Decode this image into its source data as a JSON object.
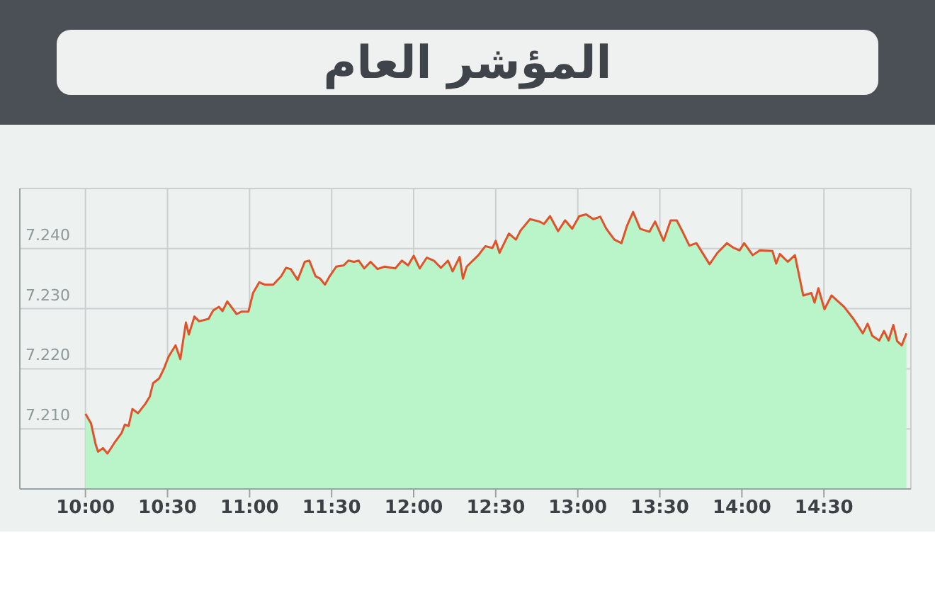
{
  "chart_data": {
    "type": "line",
    "title": "المؤشر العام",
    "x": [
      10.0,
      10.034,
      10.063,
      10.077,
      10.106,
      10.134,
      10.177,
      10.22,
      10.24,
      10.263,
      10.286,
      10.32,
      10.363,
      10.392,
      10.412,
      10.449,
      10.478,
      10.506,
      10.549,
      10.578,
      10.612,
      10.63,
      10.664,
      10.692,
      10.75,
      10.778,
      10.813,
      10.835,
      10.864,
      10.921,
      10.95,
      10.993,
      11.021,
      11.059,
      11.093,
      11.144,
      11.193,
      11.222,
      11.25,
      11.293,
      11.336,
      11.364,
      11.402,
      11.43,
      11.459,
      11.488,
      11.528,
      11.573,
      11.602,
      11.636,
      11.665,
      11.699,
      11.737,
      11.78,
      11.823,
      11.888,
      11.928,
      11.966,
      12.0,
      12.037,
      12.08,
      12.123,
      12.166,
      12.209,
      12.237,
      12.28,
      12.3,
      12.323,
      12.394,
      12.437,
      12.48,
      12.5,
      12.523,
      12.58,
      12.623,
      12.651,
      12.709,
      12.766,
      12.794,
      12.831,
      12.88,
      12.923,
      12.966,
      13.009,
      13.051,
      13.094,
      13.137,
      13.174,
      13.223,
      13.266,
      13.3,
      13.337,
      13.38,
      13.437,
      13.471,
      13.523,
      13.566,
      13.603,
      13.637,
      13.68,
      13.723,
      13.803,
      13.851,
      13.909,
      13.951,
      13.986,
      14.014,
      14.066,
      14.109,
      14.186,
      14.209,
      14.231,
      14.28,
      14.323,
      14.374,
      14.423,
      14.443,
      14.466,
      14.503,
      14.546,
      14.623,
      14.68,
      14.737,
      14.766,
      14.794,
      14.837,
      14.866,
      14.894,
      14.923,
      14.946,
      14.974,
      15.003
    ],
    "series": [
      {
        "type": "area",
        "color": "#b9f5c9",
        "values": [
          7.2125,
          7.2109,
          7.2073,
          7.2062,
          7.2068,
          7.2059,
          7.2077,
          7.2093,
          7.2107,
          7.2105,
          7.2133,
          7.2126,
          7.2141,
          7.2154,
          7.2176,
          7.2184,
          7.22,
          7.222,
          7.2239,
          7.2216,
          7.2277,
          7.2257,
          7.2287,
          7.2279,
          7.2283,
          7.2297,
          7.2303,
          7.2296,
          7.2312,
          7.2291,
          7.2295,
          7.2295,
          7.2326,
          7.2344,
          7.234,
          7.234,
          7.2354,
          7.2368,
          7.2366,
          7.2348,
          7.2378,
          7.238,
          7.2354,
          7.235,
          7.234,
          7.2354,
          7.237,
          7.2372,
          7.238,
          7.2378,
          7.238,
          7.2367,
          7.2378,
          7.2366,
          7.237,
          7.2367,
          7.238,
          7.2372,
          7.2388,
          7.2367,
          7.2385,
          7.238,
          7.2368,
          7.238,
          7.2362,
          7.2386,
          7.235,
          7.237,
          7.2389,
          7.2404,
          7.2401,
          7.2413,
          7.2393,
          7.2425,
          7.2415,
          7.243,
          7.2449,
          7.2445,
          7.2441,
          7.2454,
          7.2429,
          7.2447,
          7.2433,
          7.2454,
          7.2457,
          7.2449,
          7.2453,
          7.2433,
          7.2415,
          7.2409,
          7.2438,
          7.2461,
          7.2433,
          7.2428,
          7.2445,
          7.2413,
          7.2447,
          7.2447,
          7.2429,
          7.2405,
          7.2409,
          7.2374,
          7.2393,
          7.2409,
          7.2401,
          7.2397,
          7.2409,
          7.2389,
          7.2397,
          7.2396,
          7.2375,
          7.2391,
          7.2378,
          7.2389,
          7.2322,
          7.2326,
          7.231,
          7.2334,
          7.2299,
          7.2322,
          7.2303,
          7.2283,
          7.2259,
          7.2275,
          7.2255,
          7.2247,
          7.2263,
          7.2247,
          7.2273,
          7.2246,
          7.2239,
          7.2259
        ]
      },
      {
        "color": "#e0522a",
        "values": [
          7.2125,
          7.2109,
          7.2073,
          7.2062,
          7.2068,
          7.2059,
          7.2077,
          7.2093,
          7.2107,
          7.2105,
          7.2133,
          7.2126,
          7.2141,
          7.2154,
          7.2176,
          7.2184,
          7.22,
          7.222,
          7.2239,
          7.2216,
          7.2277,
          7.2257,
          7.2287,
          7.2279,
          7.2283,
          7.2297,
          7.2303,
          7.2296,
          7.2312,
          7.2291,
          7.2295,
          7.2295,
          7.2326,
          7.2344,
          7.234,
          7.234,
          7.2354,
          7.2368,
          7.2366,
          7.2348,
          7.2378,
          7.238,
          7.2354,
          7.235,
          7.234,
          7.2354,
          7.237,
          7.2372,
          7.238,
          7.2378,
          7.238,
          7.2367,
          7.2378,
          7.2366,
          7.237,
          7.2367,
          7.238,
          7.2372,
          7.2388,
          7.2367,
          7.2385,
          7.238,
          7.2368,
          7.238,
          7.2362,
          7.2386,
          7.235,
          7.237,
          7.2389,
          7.2404,
          7.2401,
          7.2413,
          7.2393,
          7.2425,
          7.2415,
          7.243,
          7.2449,
          7.2445,
          7.2441,
          7.2454,
          7.2429,
          7.2447,
          7.2433,
          7.2454,
          7.2457,
          7.2449,
          7.2453,
          7.2433,
          7.2415,
          7.2409,
          7.2438,
          7.2461,
          7.2433,
          7.2428,
          7.2445,
          7.2413,
          7.2447,
          7.2447,
          7.2429,
          7.2405,
          7.2409,
          7.2374,
          7.2393,
          7.2409,
          7.2401,
          7.2397,
          7.2409,
          7.2389,
          7.2397,
          7.2396,
          7.2375,
          7.2391,
          7.2378,
          7.2389,
          7.2322,
          7.2326,
          7.231,
          7.2334,
          7.2299,
          7.2322,
          7.2303,
          7.2283,
          7.2259,
          7.2275,
          7.2255,
          7.2247,
          7.2263,
          7.2247,
          7.2273,
          7.2246,
          7.2239,
          7.2259
        ]
      }
    ],
    "xlim": [
      9.6,
      15.03
    ],
    "xticks": [
      {
        "value": 10,
        "label": "10:00"
      },
      {
        "value": 10.5,
        "label": "10:30"
      },
      {
        "value": 11,
        "label": "11:00"
      },
      {
        "value": 11.5,
        "label": "11:30"
      },
      {
        "value": 12,
        "label": "12:00"
      },
      {
        "value": 12.5,
        "label": "12:30"
      },
      {
        "value": 13,
        "label": "13:00"
      },
      {
        "value": 13.5,
        "label": "13:30"
      },
      {
        "value": 14,
        "label": "14:00"
      },
      {
        "value": 14.5,
        "label": "14:30"
      }
    ],
    "ylim": [
      7.2,
      7.25
    ],
    "yticks": [
      {
        "value": 7.2,
        "label": null
      },
      {
        "value": 7.21,
        "label": "7.210"
      },
      {
        "value": 7.22,
        "label": "7.220"
      },
      {
        "value": 7.23,
        "label": "7.230"
      },
      {
        "value": 7.24,
        "label": "7.240"
      },
      {
        "value": 7.25,
        "label": null
      }
    ],
    "grid": true
  }
}
